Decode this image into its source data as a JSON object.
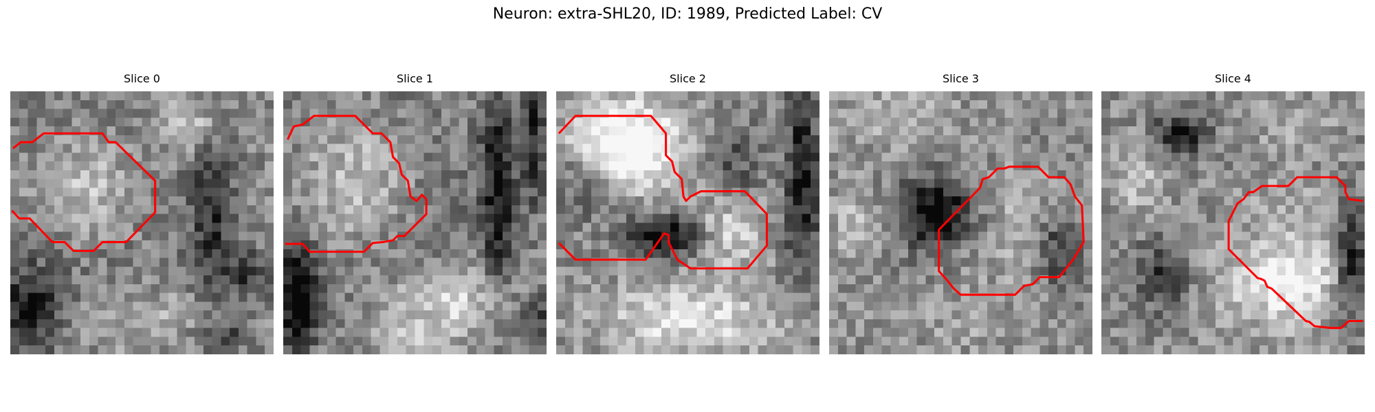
{
  "figure": {
    "title": "Neuron: extra-SHL20, ID: 1989, Predicted Label: CV"
  },
  "colors": {
    "contour": "#ff0000",
    "background": "#ffffff",
    "colormap": "grayscale"
  },
  "panels": [
    {
      "title": "Slice 0"
    },
    {
      "title": "Slice 1"
    },
    {
      "title": "Slice 2"
    },
    {
      "title": "Slice 3"
    },
    {
      "title": "Slice 4"
    }
  ]
}
